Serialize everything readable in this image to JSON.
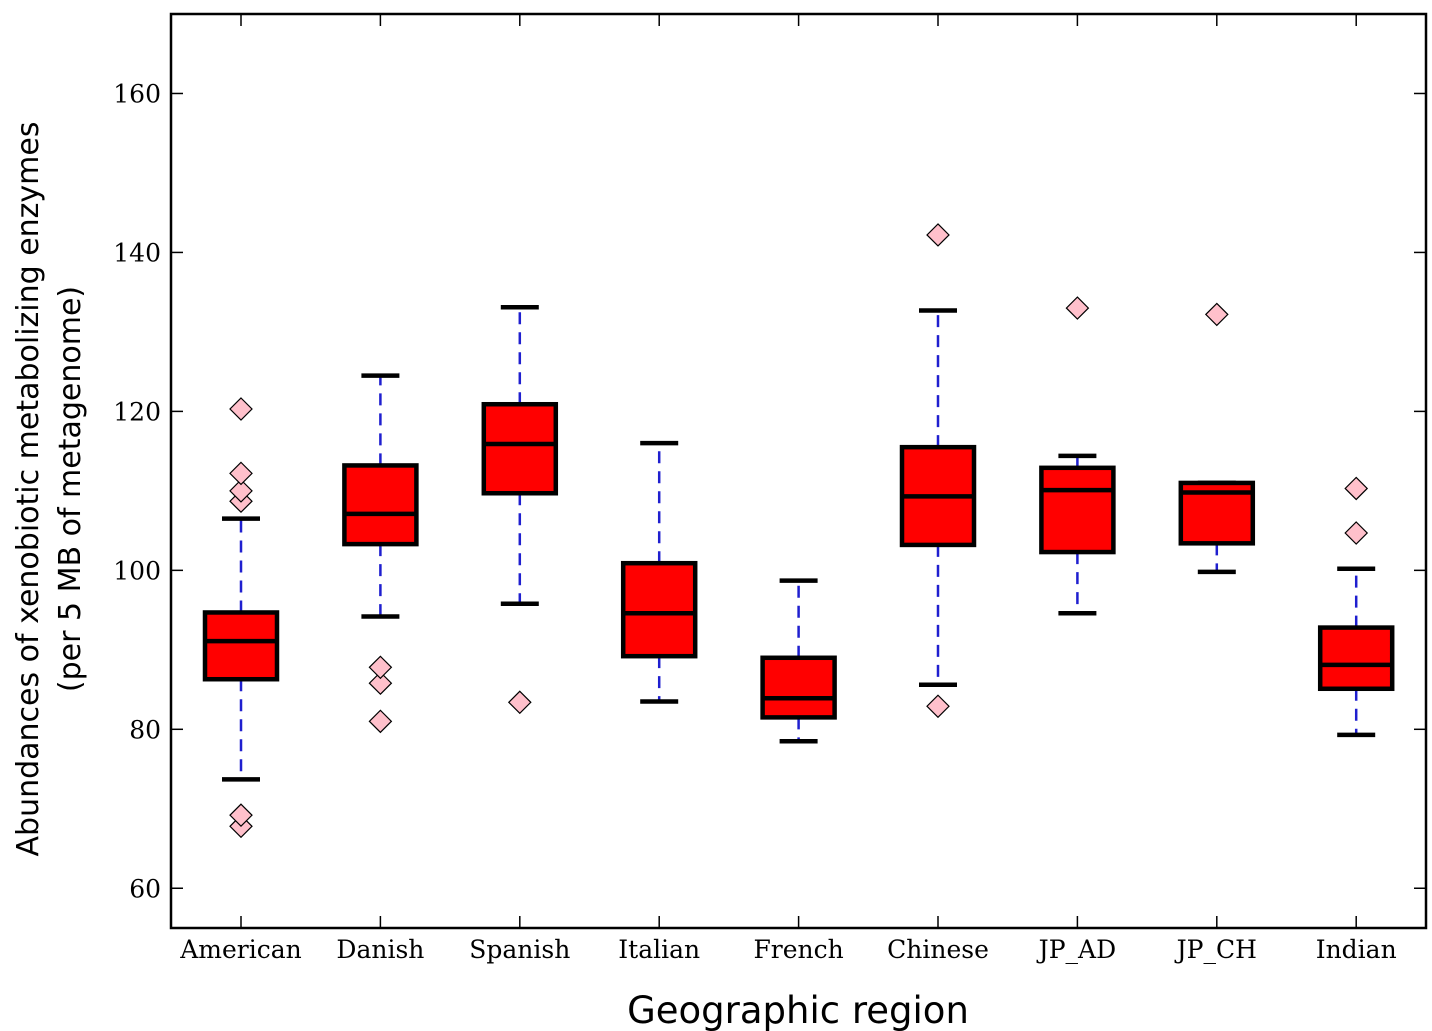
{
  "chart_data": {
    "type": "box",
    "xlabel": "Geographic region",
    "ylabel": "Abundances of xenobiotic metabolizing enzymes",
    "ylabel_line2": "(per 5 MB of metagenome)",
    "ylim": [
      55,
      170
    ],
    "yticks": [
      60,
      80,
      100,
      120,
      140,
      160
    ],
    "yticks_labels": [
      "60",
      "80",
      "100",
      "120",
      "140",
      "160"
    ],
    "grid": false,
    "legend": "none",
    "colors": {
      "box_fill": "#ff0000",
      "box_edge": "#000000",
      "whisker": "#1f1fcf",
      "outlier_fill": "#ffc0cb",
      "outlier_edge": "#000000"
    },
    "categories": [
      "American",
      "Danish",
      "Spanish",
      "Italian",
      "French",
      "Chinese",
      "JP_AD",
      "JP_CH",
      "Indian"
    ],
    "boxes": [
      {
        "whisker_low": 73.7,
        "q1": 86.3,
        "median": 91.1,
        "q3": 94.7,
        "whisker_high": 106.5,
        "outliers": [
          67.8,
          69.2,
          108.7,
          110.0,
          112.2,
          120.3
        ]
      },
      {
        "whisker_low": 94.2,
        "q1": 103.3,
        "median": 107.1,
        "q3": 113.2,
        "whisker_high": 124.5,
        "outliers": [
          81.0,
          85.8,
          87.8
        ]
      },
      {
        "whisker_low": 95.8,
        "q1": 109.7,
        "median": 115.9,
        "q3": 120.9,
        "whisker_high": 133.1,
        "outliers": [
          83.4
        ]
      },
      {
        "whisker_low": 83.5,
        "q1": 89.2,
        "median": 94.6,
        "q3": 100.9,
        "whisker_high": 116.0,
        "outliers": []
      },
      {
        "whisker_low": 78.5,
        "q1": 81.5,
        "median": 83.9,
        "q3": 89.0,
        "whisker_high": 98.7,
        "outliers": []
      },
      {
        "whisker_low": 85.6,
        "q1": 103.2,
        "median": 109.3,
        "q3": 115.5,
        "whisker_high": 132.7,
        "outliers": [
          82.9,
          142.2
        ]
      },
      {
        "whisker_low": 94.6,
        "q1": 102.3,
        "median": 110.1,
        "q3": 112.9,
        "whisker_high": 114.4,
        "outliers": [
          133.0
        ]
      },
      {
        "whisker_low": 99.8,
        "q1": 103.4,
        "median": 109.8,
        "q3": 111.0,
        "whisker_high": 111.0,
        "outliers": [
          132.2
        ]
      },
      {
        "whisker_low": 79.3,
        "q1": 85.1,
        "median": 88.1,
        "q3": 92.8,
        "whisker_high": 100.2,
        "outliers": [
          104.7,
          110.3
        ]
      }
    ]
  }
}
